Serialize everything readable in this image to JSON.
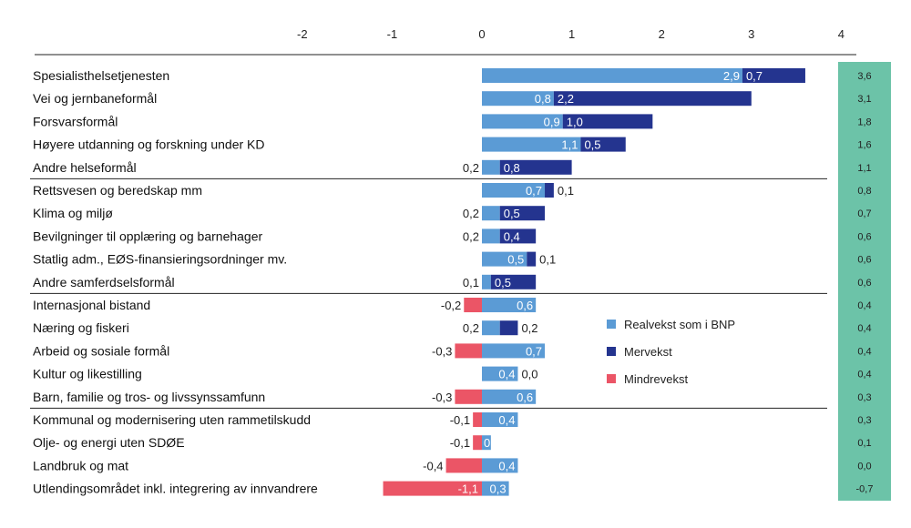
{
  "chart_data": {
    "type": "bar",
    "orientation": "horizontal",
    "stacked": true,
    "xlim": [
      -2,
      4
    ],
    "xticks": [
      "-2",
      "-1",
      "0",
      "1",
      "2",
      "3",
      "4"
    ],
    "categories": [
      "Spesialisthelsetjenesten",
      "Vei og jernbaneformål",
      "Forsvarsformål",
      "Høyere utdanning og forskning under KD",
      "Andre helseformål",
      "Rettsvesen og beredskap mm",
      "Klima og miljø",
      "Bevilgninger til opplæring og barnehager",
      "Statlig adm., EØS-finansieringsordninger mv.",
      "Andre samferdselsformål",
      "Internasjonal bistand",
      "Næring og fiskeri",
      "Arbeid og sosiale formål",
      "Kultur og likestilling",
      "Barn, familie og tros- og livssynssamfunn",
      "Kommunal og modernisering uten rammetilskudd",
      "Olje- og energi uten SDØE",
      "Landbruk og mat",
      "Utlendingsområdet inkl. integrering av innvandrere"
    ],
    "series": [
      {
        "name": "Realvekst som i BNP",
        "color": "#5b9bd5",
        "values": [
          2.9,
          0.8,
          0.9,
          1.1,
          0.2,
          0.7,
          0.2,
          0.2,
          0.5,
          0.1,
          0.6,
          0.2,
          0.7,
          0.4,
          0.6,
          0.4,
          0.1,
          0.4,
          0.3
        ],
        "labels": [
          "2,9",
          "0,8",
          "0,9",
          "1,1",
          "0,2",
          "0,7",
          "0,2",
          "0,2",
          "0,5",
          "0,1",
          "0,6",
          "0,2",
          "0,7",
          "0,4",
          "0,6",
          "0,4",
          "0,1",
          "0,4",
          "0,3"
        ]
      },
      {
        "name": "Mervekst",
        "color": "#24348f",
        "values": [
          0.7,
          2.2,
          1.0,
          0.5,
          0.8,
          0.1,
          0.5,
          0.4,
          0.1,
          0.5,
          0,
          0.2,
          0,
          0.0,
          0,
          0,
          0,
          0,
          0
        ],
        "labels": [
          "0,7",
          "2,2",
          "1,0",
          "0,5",
          "0,8",
          "0,1",
          "0,5",
          "0,4",
          "0,1",
          "0,5",
          "",
          "0,2",
          "",
          "0,0",
          "",
          "",
          "",
          "",
          ""
        ]
      },
      {
        "name": "Mindrevekst",
        "color": "#eb5566",
        "values": [
          0,
          0,
          0,
          0,
          0,
          0,
          0,
          0,
          0,
          0,
          -0.2,
          0,
          -0.3,
          0,
          -0.3,
          -0.1,
          -0.1,
          -0.4,
          -1.1
        ],
        "labels": [
          "",
          "",
          "",
          "",
          "",
          "",
          "",
          "",
          "",
          "",
          "-0,2",
          "",
          "-0,3",
          "",
          "-0,3",
          "-0,1",
          "-0,1",
          "-0,4",
          "-1,1"
        ]
      }
    ],
    "totals": [
      "3,6",
      "3,1",
      "1,8",
      "1,6",
      "1,1",
      "0,8",
      "0,7",
      "0,6",
      "0,6",
      "0,6",
      "0,4",
      "0,4",
      "0,4",
      "0,4",
      "0,3",
      "0,3",
      "0,1",
      "0,0",
      "-0,7"
    ],
    "totals_color": "#6cc3a8",
    "group_dividers_after": [
      4,
      9,
      14
    ],
    "legend_position": "right"
  }
}
